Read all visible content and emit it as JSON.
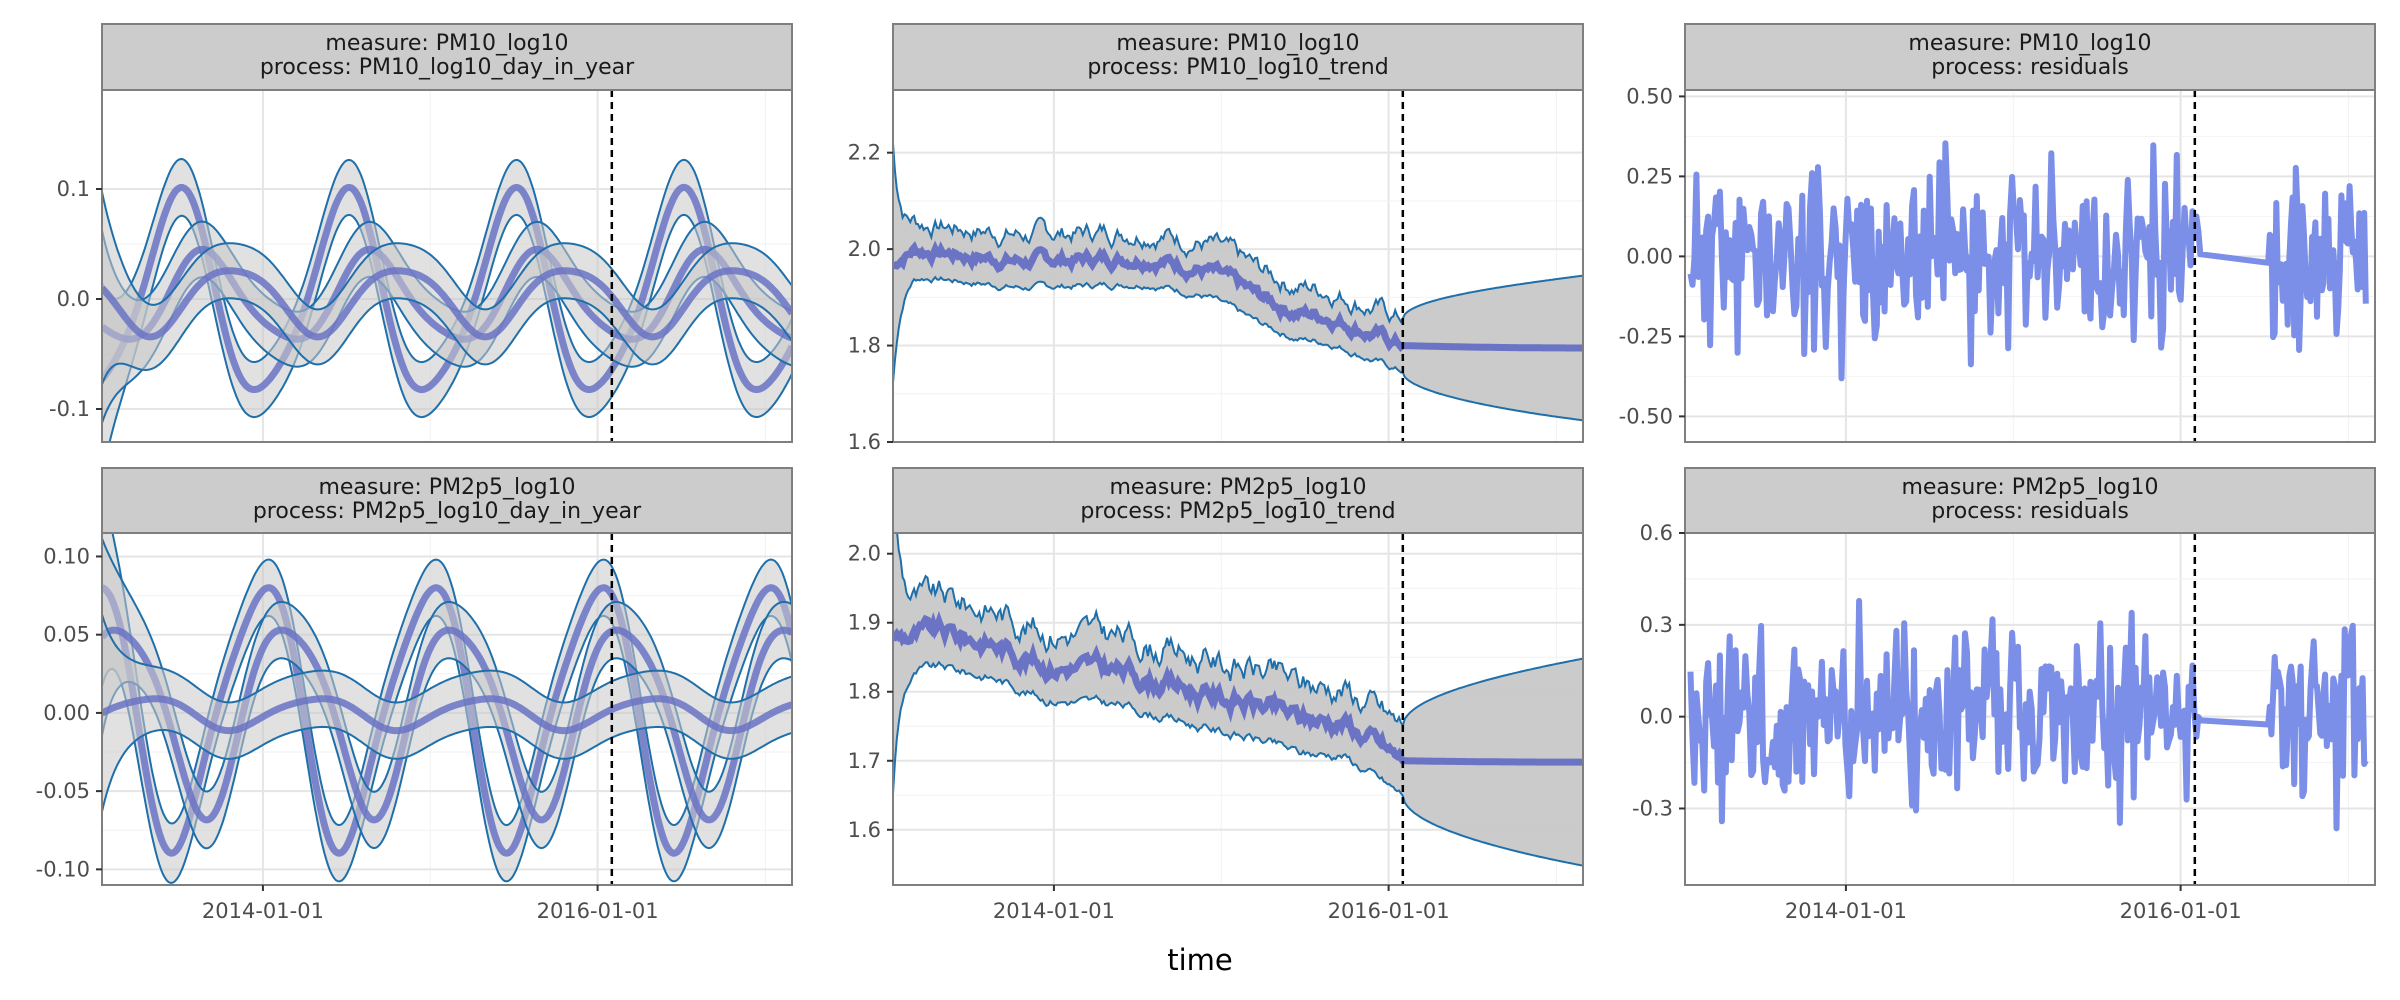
{
  "figure": {
    "xlabel": "time"
  },
  "colors": {
    "band_fill": "#c8c8c8",
    "band_edge": "#1f6faa",
    "mean_line": "#6a73c4",
    "residual_line": "#7b8fe8",
    "vline": "#000000",
    "strip_bg": "#cccccc",
    "grid": "#e5e5e5",
    "panel_border": "#7f7f7f"
  },
  "chart_data": [
    {
      "type": "line",
      "kind": "seasonal",
      "strip": [
        "measure: PM10_log10",
        "process: PM10_log10_day_in_year"
      ],
      "ylim": [
        -0.13,
        0.19
      ],
      "yticks": [
        {
          "v": -0.1,
          "label": "-0.1"
        },
        {
          "v": 0.0,
          "label": "0.0"
        },
        {
          "v": 0.1,
          "label": "0.1"
        }
      ],
      "amplitudes": [
        0.09,
        0.04,
        0.03
      ],
      "band_halfwidth": 0.025,
      "seeds": [
        1,
        2,
        3
      ]
    },
    {
      "type": "line",
      "kind": "trend",
      "strip": [
        "measure: PM10_log10",
        "process: PM10_log10_trend"
      ],
      "ylim": [
        1.6,
        2.33
      ],
      "yticks": [
        {
          "v": 1.6,
          "label": "1.6"
        },
        {
          "v": 1.8,
          "label": "1.8"
        },
        {
          "v": 2.0,
          "label": "2.0"
        },
        {
          "v": 2.2,
          "label": "2.2"
        }
      ],
      "trend_points": [
        [
          0.0,
          1.97
        ],
        [
          0.04,
          2.0
        ],
        [
          0.12,
          1.99
        ],
        [
          0.25,
          1.975
        ],
        [
          0.4,
          1.98
        ],
        [
          0.5,
          1.985
        ],
        [
          0.62,
          1.955
        ],
        [
          0.72,
          1.9
        ],
        [
          0.79,
          1.87
        ],
        [
          0.86,
          1.86
        ],
        [
          1.0,
          1.8
        ]
      ],
      "forecast_end": 1.795,
      "band_base": 0.055,
      "band_end": 0.15,
      "seed": 7
    },
    {
      "type": "line",
      "kind": "residual",
      "strip": [
        "measure: PM10_log10",
        "process: residuals"
      ],
      "ylim": [
        -0.58,
        0.52
      ],
      "yticks": [
        {
          "v": -0.5,
          "label": "-0.50"
        },
        {
          "v": -0.25,
          "label": "-0.25"
        },
        {
          "v": 0.0,
          "label": "0.00"
        },
        {
          "v": 0.25,
          "label": "0.25"
        },
        {
          "v": 0.5,
          "label": "0.50"
        }
      ],
      "scale": 0.2,
      "seed": 11
    },
    {
      "type": "line",
      "kind": "seasonal",
      "strip": [
        "measure: PM2p5_log10",
        "process: PM2p5_log10_day_in_year"
      ],
      "ylim": [
        -0.11,
        0.115
      ],
      "yticks": [
        {
          "v": -0.1,
          "label": "-0.10"
        },
        {
          "v": -0.05,
          "label": "-0.05"
        },
        {
          "v": 0.0,
          "label": "0.00"
        },
        {
          "v": 0.05,
          "label": "0.05"
        },
        {
          "v": 0.1,
          "label": "0.10"
        }
      ],
      "amplitudes": [
        0.082,
        0.06,
        0.01
      ],
      "band_halfwidth": 0.018,
      "seeds": [
        4,
        5,
        6
      ]
    },
    {
      "type": "line",
      "kind": "trend",
      "strip": [
        "measure: PM2p5_log10",
        "process: PM2p5_log10_trend"
      ],
      "ylim": [
        1.52,
        2.03
      ],
      "yticks": [
        {
          "v": 1.6,
          "label": "1.6"
        },
        {
          "v": 1.7,
          "label": "1.7"
        },
        {
          "v": 1.8,
          "label": "1.8"
        },
        {
          "v": 1.9,
          "label": "1.9"
        },
        {
          "v": 2.0,
          "label": "2.0"
        }
      ],
      "trend_points": [
        [
          0.0,
          1.88
        ],
        [
          0.1,
          1.885
        ],
        [
          0.2,
          1.87
        ],
        [
          0.3,
          1.84
        ],
        [
          0.45,
          1.83
        ],
        [
          0.6,
          1.8
        ],
        [
          0.72,
          1.78
        ],
        [
          0.8,
          1.76
        ],
        [
          0.88,
          1.76
        ],
        [
          1.0,
          1.7
        ]
      ],
      "forecast_end": 1.698,
      "band_base": 0.05,
      "band_end": 0.15,
      "seed": 9
    },
    {
      "type": "line",
      "kind": "residual",
      "strip": [
        "measure: PM2p5_log10",
        "process: residuals"
      ],
      "ylim": [
        -0.55,
        0.6
      ],
      "yticks": [
        {
          "v": -0.3,
          "label": "-0.3"
        },
        {
          "v": 0.0,
          "label": "0.0"
        },
        {
          "v": 0.3,
          "label": "0.3"
        },
        {
          "v": 0.6,
          "label": "0.6"
        }
      ],
      "scale": 0.21,
      "seed": 13
    }
  ],
  "time_axis": {
    "start": "2013-01-15",
    "end": "2017-02-28",
    "data_end": "2016-02-01",
    "vline": "2016-02-01",
    "major_ticks": [
      {
        "date": "2014-01-01",
        "label": "2014-01-01"
      },
      {
        "date": "2016-01-01",
        "label": "2016-01-01"
      }
    ],
    "minor_ticks": [
      "2015-01-01",
      "2017-01-01"
    ]
  }
}
